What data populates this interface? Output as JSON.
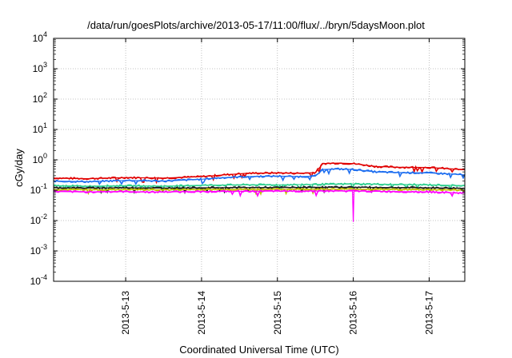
{
  "chart_data": {
    "type": "line",
    "title": "/data/run/goesPlots/archive/2013-05-17/11:00/flux/../bryn/5daysMoon.plot",
    "xlabel": "Coordinated Universal Time (UTC)",
    "ylabel": "cGy/day",
    "y_scale": "log",
    "ylim": [
      0.0001,
      10000
    ],
    "y_ticks": [
      {
        "value": 0.0001,
        "base": "10",
        "exp": "-4"
      },
      {
        "value": 0.001,
        "base": "10",
        "exp": "-3"
      },
      {
        "value": 0.01,
        "base": "10",
        "exp": "-2"
      },
      {
        "value": 0.1,
        "base": "10",
        "exp": "-1"
      },
      {
        "value": 1,
        "base": "10",
        "exp": "0"
      },
      {
        "value": 10,
        "base": "10",
        "exp": "1"
      },
      {
        "value": 100,
        "base": "10",
        "exp": "2"
      },
      {
        "value": 1000,
        "base": "10",
        "exp": "3"
      },
      {
        "value": 10000,
        "base": "10",
        "exp": "4"
      }
    ],
    "xlim": [
      2013.0512,
      2013.0517
    ],
    "x_ticks": [
      {
        "value": 13,
        "label": "2013-5-13"
      },
      {
        "value": 14,
        "label": "2013-5-14"
      },
      {
        "value": 15,
        "label": "2013-5-15"
      },
      {
        "value": 16,
        "label": "2013-5-16"
      },
      {
        "value": 17,
        "label": "2013-5-17"
      }
    ],
    "x_range_days": [
      12.05,
      17.47
    ],
    "grid": true,
    "series": [
      {
        "color": "#e00000",
        "x": [
          12.05,
          12.5,
          13.0,
          13.5,
          14.0,
          14.3,
          14.6,
          15.0,
          15.3,
          15.5,
          15.6,
          15.8,
          16.0,
          16.3,
          16.6,
          17.0,
          17.3,
          17.47
        ],
        "y": [
          0.25,
          0.24,
          0.26,
          0.25,
          0.28,
          0.32,
          0.36,
          0.37,
          0.36,
          0.38,
          0.75,
          0.78,
          0.75,
          0.6,
          0.57,
          0.56,
          0.5,
          0.47
        ]
      },
      {
        "color": "#1f6ff0",
        "x": [
          12.05,
          12.5,
          13.0,
          13.5,
          14.0,
          14.3,
          14.6,
          15.0,
          15.3,
          15.5,
          15.6,
          15.8,
          16.0,
          16.3,
          16.6,
          17.0,
          17.3,
          17.47
        ],
        "y": [
          0.2,
          0.19,
          0.21,
          0.2,
          0.23,
          0.26,
          0.28,
          0.29,
          0.28,
          0.29,
          0.48,
          0.5,
          0.48,
          0.4,
          0.38,
          0.37,
          0.34,
          0.32
        ]
      },
      {
        "color": "#2fcf8f",
        "x": [
          12.05,
          12.5,
          13.0,
          13.5,
          14.0,
          14.5,
          15.0,
          15.5,
          16.0,
          16.5,
          17.0,
          17.47
        ],
        "y": [
          0.14,
          0.135,
          0.14,
          0.135,
          0.145,
          0.15,
          0.15,
          0.155,
          0.16,
          0.155,
          0.15,
          0.14
        ]
      },
      {
        "color": "#1a1a1a",
        "x": [
          12.05,
          12.5,
          13.0,
          13.5,
          14.0,
          14.5,
          15.0,
          15.5,
          16.0,
          16.5,
          17.0,
          17.47
        ],
        "y": [
          0.12,
          0.118,
          0.12,
          0.118,
          0.12,
          0.122,
          0.122,
          0.124,
          0.125,
          0.122,
          0.12,
          0.115
        ]
      },
      {
        "color": "#c0c000",
        "x": [
          12.05,
          12.5,
          13.0,
          13.5,
          14.0,
          14.5,
          15.0,
          15.5,
          16.0,
          16.5,
          17.0,
          17.47
        ],
        "y": [
          0.105,
          0.103,
          0.105,
          0.103,
          0.105,
          0.106,
          0.107,
          0.108,
          0.108,
          0.106,
          0.104,
          0.1
        ]
      },
      {
        "color": "#ff00ff",
        "x": [
          12.05,
          12.5,
          13.0,
          13.3,
          13.5,
          14.0,
          14.5,
          15.0,
          15.5,
          15.99,
          16.0,
          16.01,
          16.5,
          17.0,
          17.47
        ],
        "y": [
          0.09,
          0.088,
          0.09,
          0.087,
          0.088,
          0.09,
          0.092,
          0.093,
          0.094,
          0.094,
          0.009,
          0.094,
          0.09,
          0.088,
          0.08
        ]
      }
    ]
  }
}
